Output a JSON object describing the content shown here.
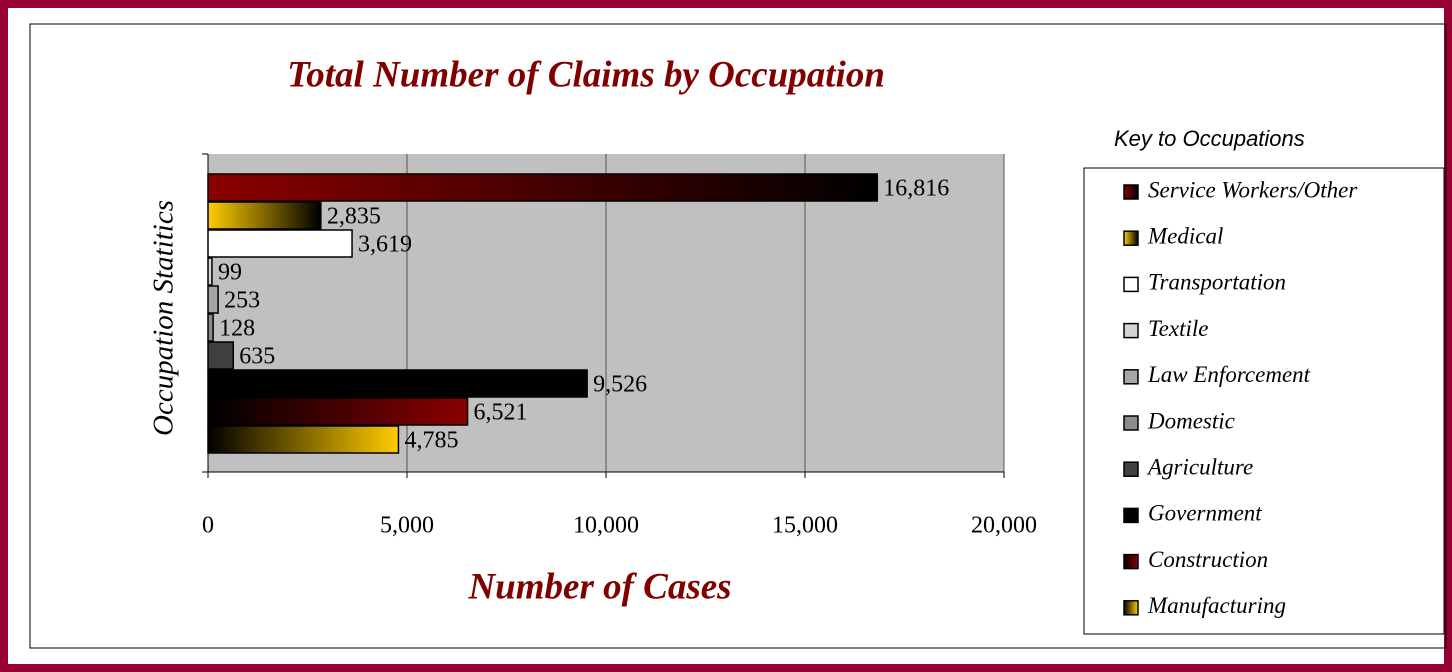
{
  "chart_data": {
    "type": "bar",
    "orientation": "horizontal",
    "title": "Total Number of Claims by Occupation",
    "x_label": "Number of Cases",
    "y_label": "Occupation Statitics",
    "legend_title": "Key to Occupations",
    "legend": "right",
    "grid": true,
    "categories": [
      "Service Workers/Other",
      "Medical",
      "Transportation",
      "Textile",
      "Law Enforcement",
      "Domestic",
      "Agriculture",
      "Government",
      "Construction",
      "Manufacturing"
    ],
    "values": [
      16816,
      2835,
      3619,
      99,
      253,
      128,
      635,
      9526,
      6521,
      4785
    ],
    "value_labels": [
      "16,816",
      "2,835",
      "3,619",
      "99",
      "253",
      "128",
      "635",
      "9,526",
      "6,521",
      "4,785"
    ],
    "colors": [
      [
        "#8b0000",
        "#000000"
      ],
      [
        "#ffcc00",
        "#000000"
      ],
      "#ffffff",
      "#d4d4d4",
      "#a6a6a6",
      "#8c8c8c",
      "#404040",
      "#000000",
      [
        "#000000",
        "#8b0000"
      ],
      [
        "#000000",
        "#ffcc00"
      ]
    ],
    "xlim": [
      0,
      20000
    ],
    "xticks": [
      0,
      {
        "value": 5000,
        "label": "5,000"
      },
      {
        "value": 10000,
        "label": "10,000"
      },
      {
        "value": 15000,
        "label": "15,000"
      },
      {
        "value": 20000,
        "label": "20,000"
      }
    ]
  }
}
